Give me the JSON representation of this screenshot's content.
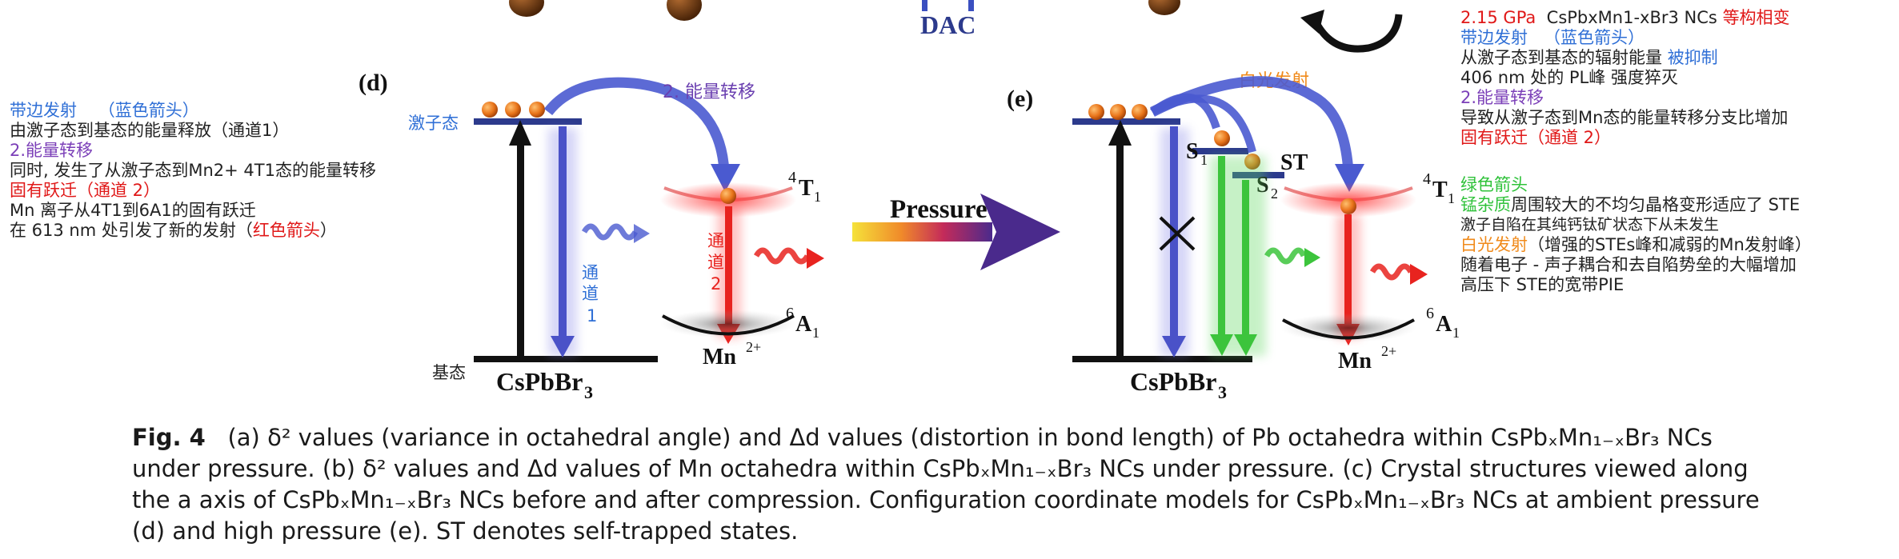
{
  "panel_d": {
    "label": "(d)",
    "exciton_label": "激子态",
    "energy_transfer": "2. 能量转移",
    "channel1": [
      "通",
      "道",
      "1"
    ],
    "channel2": [
      "通",
      "道",
      "2"
    ],
    "ground_label": "基态",
    "host": "CsPbBr",
    "host_sub": "3",
    "t1": "T",
    "t1_sup": "4",
    "t1_sub": "1",
    "a1": "A",
    "a1_sup": "6",
    "a1_sub": "1",
    "mn": "Mn",
    "mn_sup": "2+"
  },
  "panel_e": {
    "label": "(e)",
    "white_light": "白光发射",
    "s1": "S",
    "s1_sub": "1",
    "s2": "S",
    "s2_sub": "2",
    "st": "ST",
    "host": "CsPbBr",
    "host_sub": "3",
    "t1": "T",
    "t1_sup": "4",
    "t1_sub": "1",
    "a1": "A",
    "a1_sup": "6",
    "a1_sub": "1",
    "mn": "Mn",
    "mn_sup": "2+"
  },
  "top": {
    "dac": "DAC"
  },
  "pressure_label": "Pressure",
  "left_notes": {
    "line1_a": "带边发射",
    "line1_b": "（蓝色箭头）",
    "line2": "由激子态到基态的能量释放（通道1）",
    "line3": "2.能量转移",
    "line4": "同时, 发生了从激子态到Mn2+ 4T1态的能量转移",
    "line5": "固有跃迁（通道 2）",
    "line6": "Mn 离子从4T1到6A1的固有跃迁",
    "line7_a": "在 613 nm 处引发了新的发射（",
    "line7_b": "红色箭头",
    "line7_c": "）"
  },
  "right_notes_top": {
    "line1_a": "2.15 GPa",
    "line1_b": "CsPbxMn1-xBr3 NCs",
    "line1_c": "等构相变",
    "line2_a": "带边发射",
    "line2_b": "（蓝色箭头）",
    "line3_a": "从激子态到基态的辐射能量",
    "line3_b": "被抑制",
    "line4": "406 nm 处的 PL峰 强度猝灭",
    "line5": "2.能量转移",
    "line6": "导致从激子态到Mn态的能量转移分支比增加",
    "line7": "固有跃迁（通道 2）"
  },
  "right_notes_bottom": {
    "line1": "绿色箭头",
    "line2_a": "锰杂质",
    "line2_b": "周围较大的不均匀晶格变形适应了 STE",
    "line3": "激子自陷在其纯钙钛矿状态下从未发生",
    "line4_a": "白光发射",
    "line4_b": "（增强的STEs峰和减弱的Mn发射峰）",
    "line5": "随着电子 - 声子耦合和去自陷势垒的大幅增加",
    "line6": "高压下 STE的宽带PIE"
  },
  "caption": {
    "fig": "Fig. 4",
    "text": "(a) δ² values (variance in octahedral angle) and Δd values (distortion in bond length) of Pb octahedra within CsPbₓMn₁₋ₓBr₃ NCs under pressure. (b) δ² values and Δd values of Mn octahedra within CsPbₓMn₁₋ₓBr₃ NCs under pressure. (c) Crystal structures viewed along the a axis of CsPbₓMn₁₋ₓBr₃ NCs before and after compression. Configuration coordinate models for CsPbₓMn₁₋ₓBr₃ NCs at ambient pressure (d) and high pressure (e). ST denotes self-trapped states."
  },
  "colors": {
    "blue_arrow": "#3d4fc4",
    "red_arrow": "#e8231f",
    "green_arrow": "#3cc43c",
    "orange_ball": "#e87a1c",
    "navy_level": "#2c3a8c"
  }
}
